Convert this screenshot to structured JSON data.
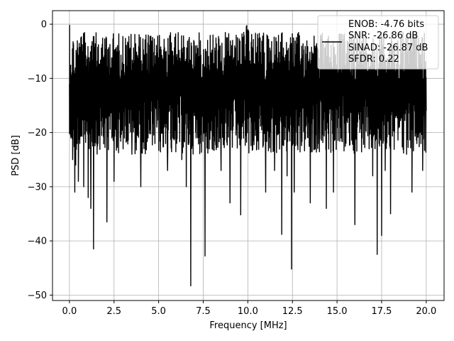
{
  "chart_data": {
    "type": "line",
    "title": "",
    "xlabel": "Frequency [MHz]",
    "ylabel": "PSD [dB]",
    "xlim": [
      -0.95,
      21.0
    ],
    "ylim": [
      -51,
      2.5
    ],
    "grid": true,
    "xticks": [
      0.0,
      2.5,
      5.0,
      7.5,
      10.0,
      12.5,
      15.0,
      17.5,
      20.0
    ],
    "xtick_labels": [
      "0.0",
      "2.5",
      "5.0",
      "7.5",
      "10.0",
      "12.5",
      "15.0",
      "17.5",
      "20.0"
    ],
    "yticks": [
      0,
      -10,
      -20,
      -30,
      -40,
      -50
    ],
    "ytick_labels": [
      "0",
      "−10",
      "−20",
      "−30",
      "−40",
      "−50"
    ],
    "legend": {
      "placement": "top-right",
      "entries": [
        "ENOB: -4.76 bits",
        "SNR: -26.86 dB",
        "SINAD: -26.87 dB",
        "SFDR: 0.22"
      ]
    },
    "series": [
      {
        "color": "#000000",
        "x": [
          0,
          0.01,
          0.02,
          0.05,
          0.08,
          0.12,
          0.18,
          0.3,
          0.35,
          0.5,
          0.65,
          0.8,
          1.05,
          1.2,
          1.35,
          1.6,
          2.1,
          2.5,
          2.9,
          3.5,
          4.0,
          4.3,
          4.9,
          5.5,
          6.0,
          6.3,
          6.55,
          6.8,
          7.1,
          7.45,
          7.6,
          8.0,
          8.5,
          9.0,
          9.3,
          9.6,
          10.0,
          10.5,
          11.0,
          11.5,
          11.9,
          12.2,
          12.45,
          12.6,
          13.0,
          13.5,
          14.0,
          14.4,
          14.8,
          15.0,
          15.5,
          16.0,
          16.4,
          16.8,
          17.0,
          17.25,
          17.5,
          17.7,
          18.0,
          18.5,
          18.9,
          19.2,
          19.5,
          19.8,
          20.0
        ],
        "y": [
          -11,
          -0.2,
          -16,
          -9,
          -21,
          -18,
          -25,
          -31,
          -26,
          -29,
          -13,
          -30,
          -32,
          -34,
          -41.5,
          -22,
          -36.5,
          -29,
          -14,
          -24,
          -30,
          -23,
          -19,
          -27,
          -22,
          -25,
          -30,
          -48.3,
          -21,
          -17,
          -42.8,
          -23,
          -27,
          -33,
          -16,
          -35.2,
          -13,
          -23,
          -31,
          -27,
          -38.8,
          -28,
          -45.2,
          -31,
          -21,
          -33,
          -19,
          -34,
          -31,
          -13,
          -22,
          -37,
          -21,
          -23,
          -28,
          -42.5,
          -39,
          -27,
          -35,
          -19,
          -24,
          -31,
          -14,
          -27,
          -16
        ]
      }
    ]
  }
}
